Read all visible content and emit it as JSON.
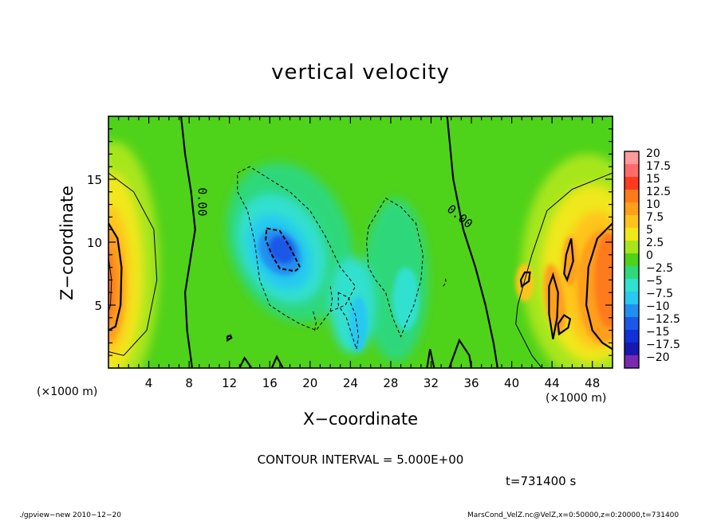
{
  "chart_data": {
    "type": "heatmap",
    "title": "vertical velocity",
    "xlabel": "X−coordinate",
    "ylabel": "Z−coordinate",
    "x_unit": "(×1000 m)",
    "xlim": [
      0,
      50
    ],
    "ylim": [
      0,
      20
    ],
    "x_ticks": [
      4,
      8,
      12,
      16,
      20,
      24,
      28,
      32,
      36,
      40,
      44,
      48
    ],
    "y_ticks": [
      5,
      10,
      15
    ],
    "colorbar": {
      "labels": [
        "20",
        "17.5",
        "15",
        "12.5",
        "10",
        "7.5",
        "5",
        "2.5",
        "0",
        "−2.5",
        "−5",
        "−7.5",
        "−10",
        "−12.5",
        "−15",
        "−17.5",
        "−20"
      ],
      "colors": [
        "#ff9a9a",
        "#ff6a6a",
        "#ff3a20",
        "#ff7a1a",
        "#ff9f1a",
        "#ffc41a",
        "#f0e81a",
        "#a8e61a",
        "#4fd21a",
        "#2fd87a",
        "#30e0d0",
        "#28c8f0",
        "#2090f0",
        "#1c58e8",
        "#1030d8",
        "#1818b0",
        "#7a2ab0"
      ]
    },
    "zero_contour_label": "0.00",
    "contour_interval": "CONTOUR INTERVAL = 5.000E+00",
    "features": [
      {
        "x": 17,
        "z": 9,
        "value": -13,
        "sign": "downdraft"
      },
      {
        "x": 27.5,
        "z": 7,
        "value": -6,
        "sign": "downdraft"
      },
      {
        "x": 0.8,
        "z": 6,
        "value": 14,
        "sign": "updraft"
      },
      {
        "x": 49.5,
        "z": 6.5,
        "value": 14,
        "sign": "updraft"
      },
      {
        "x": 45,
        "z": 5.5,
        "value": 12,
        "sign": "updraft"
      }
    ]
  },
  "text": {
    "title": "vertical velocity",
    "xunit_left": "(×1000 m)",
    "xunit_right": "(×1000 m)",
    "xlabel": "X−coordinate",
    "ylabel": "Z−coordinate",
    "contour_interval": "CONTOUR INTERVAL = 5.000E+00",
    "time": "t=731400 s",
    "footer_left": "./gpview−new   2010−12−20",
    "footer_right": "MarsCond_VelZ.nc@VelZ,x=0:50000,z=0:20000,t=731400"
  }
}
